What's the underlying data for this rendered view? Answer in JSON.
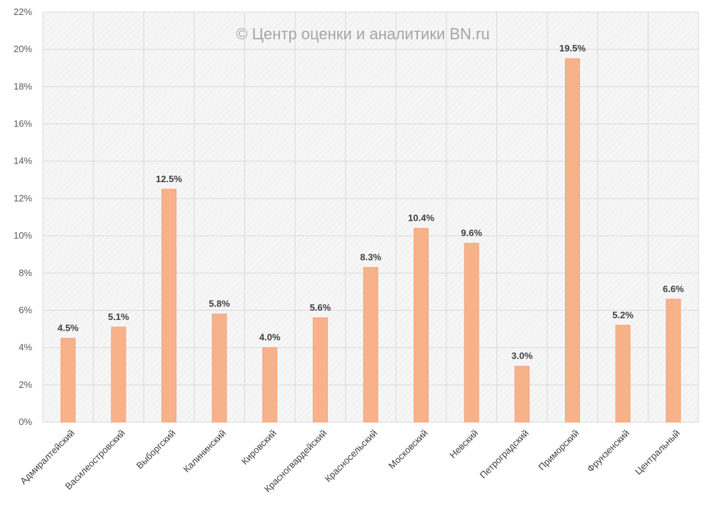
{
  "chart_data": {
    "type": "bar",
    "title": "",
    "watermark": "© Центр оценки и аналитики BN.ru",
    "xlabel": "",
    "ylabel": "",
    "ylim": [
      0,
      22
    ],
    "ytick_step": 2,
    "ytick_labels": [
      "0%",
      "2%",
      "4%",
      "6%",
      "8%",
      "10%",
      "12%",
      "14%",
      "16%",
      "18%",
      "20%",
      "22%"
    ],
    "categories": [
      "Адмиралтейский",
      "Василеостровский",
      "Выборгский",
      "Калининский",
      "Кировский",
      "Красногвардейский",
      "Красносельский",
      "Московский",
      "Невский",
      "Петроградский",
      "Приморский",
      "Фрунзенский",
      "Центральный"
    ],
    "values": [
      4.5,
      5.1,
      12.5,
      5.8,
      4.0,
      5.6,
      8.3,
      10.4,
      9.6,
      3.0,
      19.5,
      5.2,
      6.6
    ],
    "value_labels": [
      "4.5%",
      "5.1%",
      "12.5%",
      "5.8%",
      "4.0%",
      "5.6%",
      "8.3%",
      "10.4%",
      "9.6%",
      "3.0%",
      "19.5%",
      "5.2%",
      "6.6%"
    ],
    "grid": true,
    "legend": "none",
    "colors": {
      "bar": "#f7b28a",
      "bar_edge": "#f4a57a",
      "grid": "#d9d9d9",
      "plot_bg": "#f4f4f4"
    }
  }
}
